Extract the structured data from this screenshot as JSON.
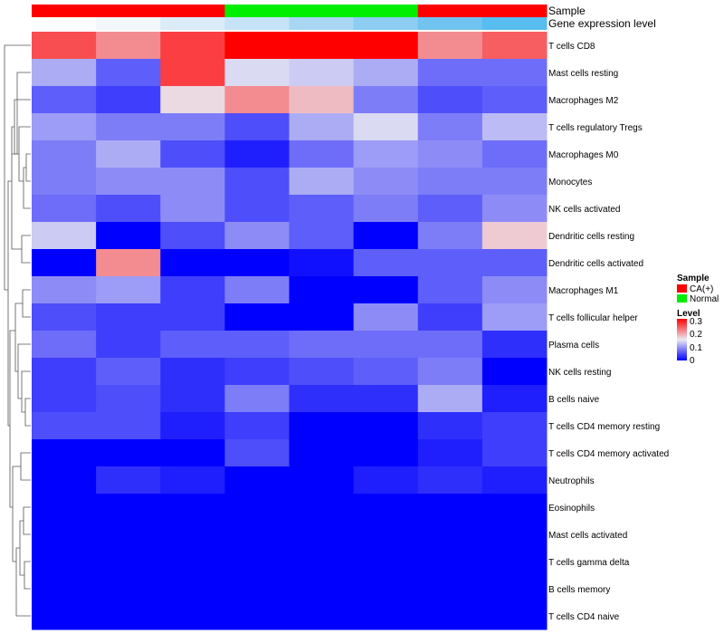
{
  "chart_data": {
    "type": "heatmap",
    "columns": 8,
    "annotations": [
      {
        "label": "Sample",
        "colors": [
          "#ff0000",
          "#ff0000",
          "#ff0000",
          "#00ee00",
          "#00ee00",
          "#00ee00",
          "#ff0000",
          "#ff0000"
        ]
      },
      {
        "label": "Gene expression level",
        "colors": [
          "#ffffff",
          "#f2f7fc",
          "#dcebf8",
          "#c6e2f6",
          "#a8d6f3",
          "#8ccdf1",
          "#70c4ef",
          "#56bdee"
        ]
      }
    ],
    "rows": [
      "T cells CD8",
      "Mast cells resting",
      "Macrophages M2",
      "T cells regulatory  Tregs",
      "Macrophages M0",
      "Monocytes",
      "NK cells activated",
      "Dendritic cells resting",
      "Dendritic cells activated",
      "Macrophages M1",
      "T cells follicular helper",
      "Plasma cells",
      "NK cells resting",
      "B cells naive",
      "T cells CD4 memory resting",
      "T cells CD4 memory activated",
      "Neutrophils",
      "Eosinophils",
      "Mast cells activated",
      "T cells gamma delta",
      "B cells memory",
      "T cells CD4 naive"
    ],
    "values": [
      [
        0.25,
        0.21,
        0.26,
        0.3,
        0.3,
        0.3,
        0.21,
        0.24
      ],
      [
        0.11,
        0.06,
        0.26,
        0.14,
        0.13,
        0.11,
        0.07,
        0.07
      ],
      [
        0.06,
        0.04,
        0.16,
        0.21,
        0.18,
        0.08,
        0.05,
        0.06
      ],
      [
        0.1,
        0.08,
        0.08,
        0.05,
        0.11,
        0.14,
        0.08,
        0.12
      ],
      [
        0.08,
        0.11,
        0.05,
        0.02,
        0.07,
        0.1,
        0.09,
        0.07
      ],
      [
        0.08,
        0.09,
        0.09,
        0.05,
        0.11,
        0.09,
        0.08,
        0.08
      ],
      [
        0.07,
        0.05,
        0.09,
        0.05,
        0.06,
        0.08,
        0.06,
        0.09
      ],
      [
        0.13,
        0.0,
        0.05,
        0.09,
        0.06,
        0.0,
        0.08,
        0.17
      ],
      [
        0.0,
        0.21,
        0.0,
        0.0,
        0.01,
        0.06,
        0.06,
        0.06
      ],
      [
        0.09,
        0.1,
        0.04,
        0.08,
        0.0,
        0.0,
        0.06,
        0.09
      ],
      [
        0.05,
        0.04,
        0.04,
        0.0,
        0.0,
        0.09,
        0.04,
        0.1
      ],
      [
        0.07,
        0.04,
        0.06,
        0.06,
        0.07,
        0.07,
        0.07,
        0.03
      ],
      [
        0.04,
        0.06,
        0.03,
        0.04,
        0.05,
        0.06,
        0.08,
        0.0
      ],
      [
        0.04,
        0.05,
        0.03,
        0.08,
        0.03,
        0.03,
        0.11,
        0.02
      ],
      [
        0.05,
        0.05,
        0.02,
        0.04,
        0.0,
        0.0,
        0.03,
        0.04
      ],
      [
        0.0,
        0.0,
        0.0,
        0.05,
        0.0,
        0.0,
        0.02,
        0.04
      ],
      [
        0.0,
        0.03,
        0.02,
        0.0,
        0.0,
        0.02,
        0.03,
        0.02
      ],
      [
        0.0,
        0.0,
        0.0,
        0.0,
        0.0,
        0.0,
        0.0,
        0.0
      ],
      [
        0.0,
        0.0,
        0.0,
        0.0,
        0.0,
        0.0,
        0.0,
        0.0
      ],
      [
        0.0,
        0.0,
        0.0,
        0.0,
        0.0,
        0.0,
        0.0,
        0.0
      ],
      [
        0.0,
        0.0,
        0.0,
        0.0,
        0.0,
        0.0,
        0.0,
        0.0
      ],
      [
        0.0,
        0.0,
        0.0,
        0.0,
        0.0,
        0.0,
        0.0,
        0.0
      ]
    ],
    "color_scale": {
      "stops": [
        {
          "value": 0.0,
          "color": "#0000ff"
        },
        {
          "value": 0.15,
          "color": "#ebeaf2"
        },
        {
          "value": 0.3,
          "color": "#ff0000"
        }
      ]
    },
    "legend": {
      "placement": "right",
      "sample": {
        "title": "Sample",
        "items": [
          {
            "label": "CA(+)",
            "color": "#ff0000"
          },
          {
            "label": "Normal",
            "color": "#00ee00"
          }
        ]
      },
      "level": {
        "title": "Level",
        "ticks": [
          "0.3",
          "0.2",
          "0.1",
          "0"
        ]
      }
    },
    "row_dendrogram": true
  }
}
